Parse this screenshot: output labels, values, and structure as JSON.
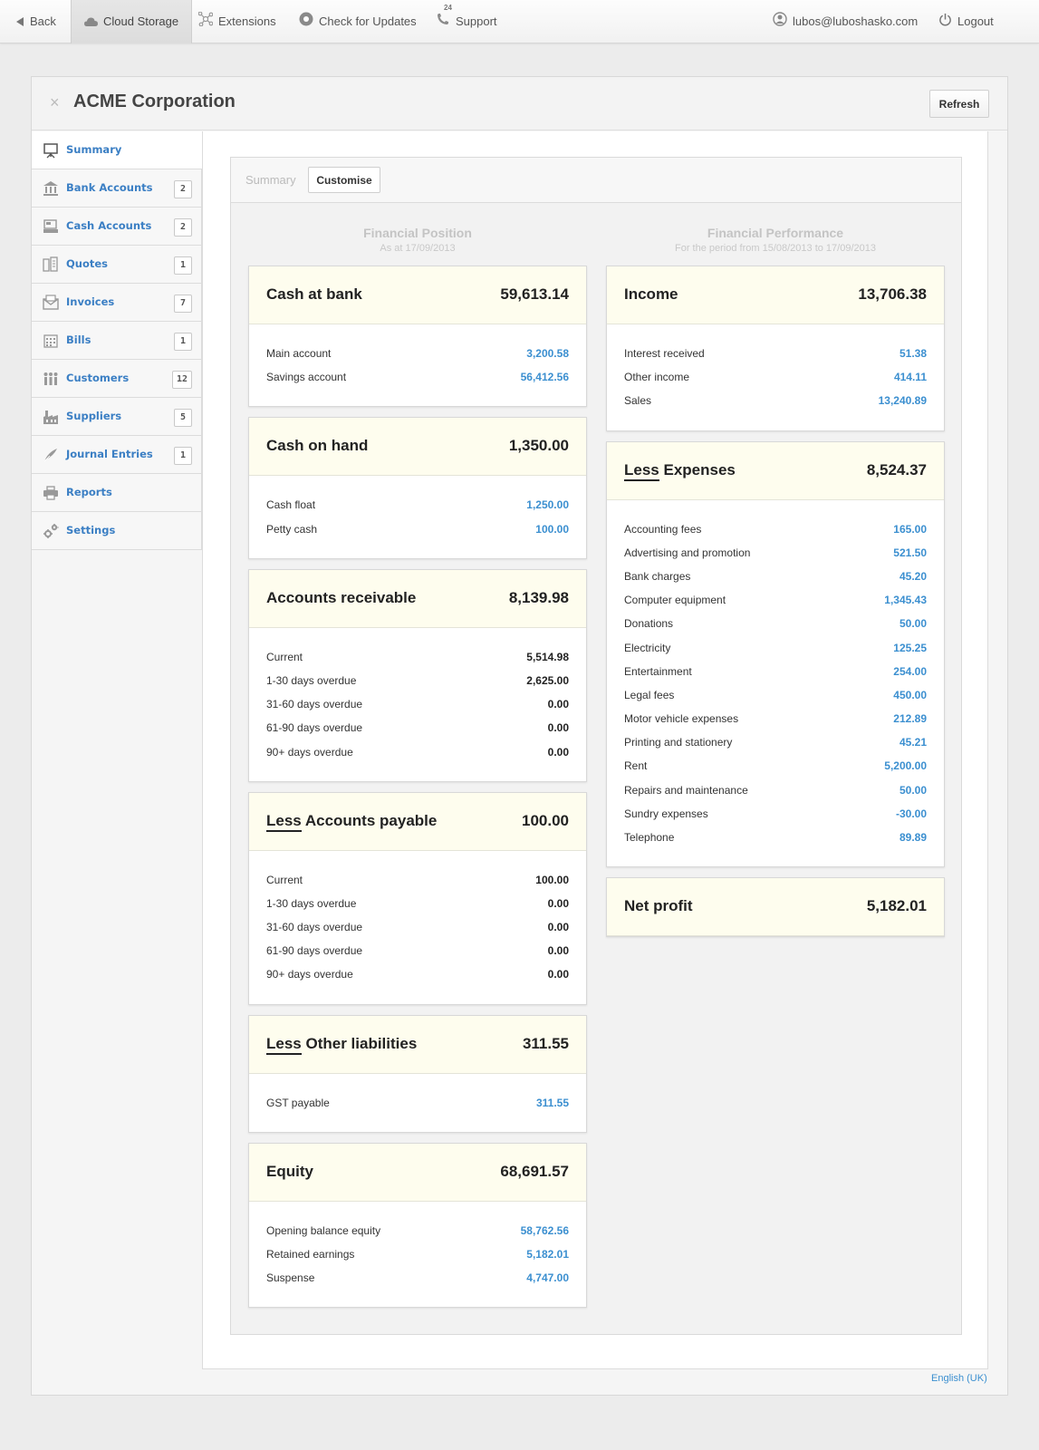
{
  "topbar": {
    "back": "Back",
    "cloud": "Cloud Storage",
    "extensions": "Extensions",
    "updates": "Check for Updates",
    "support": "Support",
    "support_badge": "24",
    "user": "lubos@luboshasko.com",
    "logout": "Logout"
  },
  "panel": {
    "title": "ACME Corporation",
    "close": "×",
    "refresh": "Refresh"
  },
  "sidebar": {
    "items": [
      {
        "label": "Summary",
        "badge": ""
      },
      {
        "label": "Bank Accounts",
        "badge": "2"
      },
      {
        "label": "Cash Accounts",
        "badge": "2"
      },
      {
        "label": "Quotes",
        "badge": "1"
      },
      {
        "label": "Invoices",
        "badge": "7"
      },
      {
        "label": "Bills",
        "badge": "1"
      },
      {
        "label": "Customers",
        "badge": "12"
      },
      {
        "label": "Suppliers",
        "badge": "5"
      },
      {
        "label": "Journal Entries",
        "badge": "1"
      },
      {
        "label": "Reports",
        "badge": ""
      },
      {
        "label": "Settings",
        "badge": ""
      }
    ]
  },
  "tabs": {
    "summary": "Summary",
    "customise": "Customise"
  },
  "position": {
    "heading": "Financial Position",
    "sub": "As at 17/09/2013",
    "cards": [
      {
        "less": "",
        "title": "Cash at bank",
        "total": "59,613.14",
        "rows": [
          {
            "label": "Main account",
            "value": "3,200.58",
            "link": true
          },
          {
            "label": "Savings account",
            "value": "56,412.56",
            "link": true
          }
        ]
      },
      {
        "less": "",
        "title": "Cash on hand",
        "total": "1,350.00",
        "rows": [
          {
            "label": "Cash float",
            "value": "1,250.00",
            "link": true
          },
          {
            "label": "Petty cash",
            "value": "100.00",
            "link": true
          }
        ]
      },
      {
        "less": "",
        "title": "Accounts receivable",
        "total": "8,139.98",
        "rows": [
          {
            "label": "Current",
            "value": "5,514.98",
            "link": false
          },
          {
            "label": "1-30 days overdue",
            "value": "2,625.00",
            "link": false
          },
          {
            "label": "31-60 days overdue",
            "value": "0.00",
            "link": false
          },
          {
            "label": "61-90 days overdue",
            "value": "0.00",
            "link": false
          },
          {
            "label": "90+ days overdue",
            "value": "0.00",
            "link": false
          }
        ]
      },
      {
        "less": "Less",
        "title": "Accounts payable",
        "total": "100.00",
        "rows": [
          {
            "label": "Current",
            "value": "100.00",
            "link": false
          },
          {
            "label": "1-30 days overdue",
            "value": "0.00",
            "link": false
          },
          {
            "label": "31-60 days overdue",
            "value": "0.00",
            "link": false
          },
          {
            "label": "61-90 days overdue",
            "value": "0.00",
            "link": false
          },
          {
            "label": "90+ days overdue",
            "value": "0.00",
            "link": false
          }
        ]
      },
      {
        "less": "Less",
        "title": "Other liabilities",
        "total": "311.55",
        "rows": [
          {
            "label": "GST payable",
            "value": "311.55",
            "link": true
          }
        ]
      },
      {
        "less": "",
        "title": "Equity",
        "total": "68,691.57",
        "rows": [
          {
            "label": "Opening balance equity",
            "value": "58,762.56",
            "link": true
          },
          {
            "label": "Retained earnings",
            "value": "5,182.01",
            "link": true
          },
          {
            "label": "Suspense",
            "value": "4,747.00",
            "link": true
          }
        ]
      }
    ]
  },
  "performance": {
    "heading": "Financial Performance",
    "sub": "For the period from 15/08/2013 to 17/09/2013",
    "cards": [
      {
        "less": "",
        "title": "Income",
        "total": "13,706.38",
        "rows": [
          {
            "label": "Interest received",
            "value": "51.38",
            "link": true
          },
          {
            "label": "Other income",
            "value": "414.11",
            "link": true
          },
          {
            "label": "Sales",
            "value": "13,240.89",
            "link": true
          }
        ]
      },
      {
        "less": "Less",
        "title": "Expenses",
        "total": "8,524.37",
        "rows": [
          {
            "label": "Accounting fees",
            "value": "165.00",
            "link": true
          },
          {
            "label": "Advertising and promotion",
            "value": "521.50",
            "link": true
          },
          {
            "label": "Bank charges",
            "value": "45.20",
            "link": true
          },
          {
            "label": "Computer equipment",
            "value": "1,345.43",
            "link": true
          },
          {
            "label": "Donations",
            "value": "50.00",
            "link": true
          },
          {
            "label": "Electricity",
            "value": "125.25",
            "link": true
          },
          {
            "label": "Entertainment",
            "value": "254.00",
            "link": true
          },
          {
            "label": "Legal fees",
            "value": "450.00",
            "link": true
          },
          {
            "label": "Motor vehicle expenses",
            "value": "212.89",
            "link": true
          },
          {
            "label": "Printing and stationery",
            "value": "45.21",
            "link": true
          },
          {
            "label": "Rent",
            "value": "5,200.00",
            "link": true
          },
          {
            "label": "Repairs and maintenance",
            "value": "50.00",
            "link": true
          },
          {
            "label": "Sundry expenses",
            "value": "-30.00",
            "link": true
          },
          {
            "label": "Telephone",
            "value": "89.89",
            "link": true
          }
        ]
      },
      {
        "less": "",
        "title": "Net profit",
        "total": "5,182.01",
        "rows": []
      }
    ]
  },
  "footer": {
    "language": "English (UK)"
  }
}
